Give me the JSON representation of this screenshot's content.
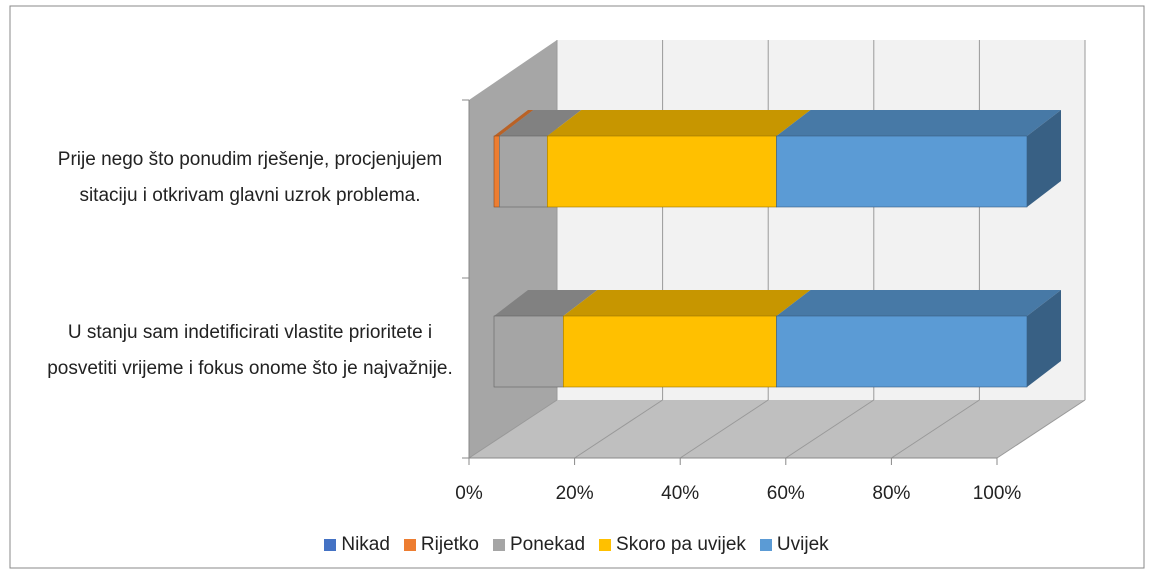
{
  "chart_data": {
    "type": "bar3d_stacked_horizontal",
    "categories": [
      "Prije nego što ponudim rješenje, procjenjujem sitaciju i otkrivam glavni uzrok problema.",
      "U stanju sam indetificirati vlastite prioritete i posvetiti vrijeme i fokus onome što je najvažnije."
    ],
    "series": [
      {
        "name": "Nikad",
        "color": "#4472c4",
        "values": [
          0,
          0
        ]
      },
      {
        "name": "Rijetko",
        "color": "#ed7d31",
        "values": [
          1,
          0
        ]
      },
      {
        "name": "Ponekad",
        "color": "#a5a5a5",
        "values": [
          9,
          13
        ]
      },
      {
        "name": "Skoro pa uvijek",
        "color": "#ffc000",
        "values": [
          43,
          40
        ]
      },
      {
        "name": "Uvijek",
        "color": "#5b9bd5",
        "values": [
          47,
          47
        ]
      }
    ],
    "xlim": [
      0,
      100
    ],
    "xticks": [
      {
        "value": 0,
        "label": "0%"
      },
      {
        "value": 20,
        "label": "20%"
      },
      {
        "value": 40,
        "label": "40%"
      },
      {
        "value": 60,
        "label": "60%"
      },
      {
        "value": 80,
        "label": "80%"
      },
      {
        "value": 100,
        "label": "100%"
      }
    ],
    "grid": true,
    "legend": "bottom"
  }
}
